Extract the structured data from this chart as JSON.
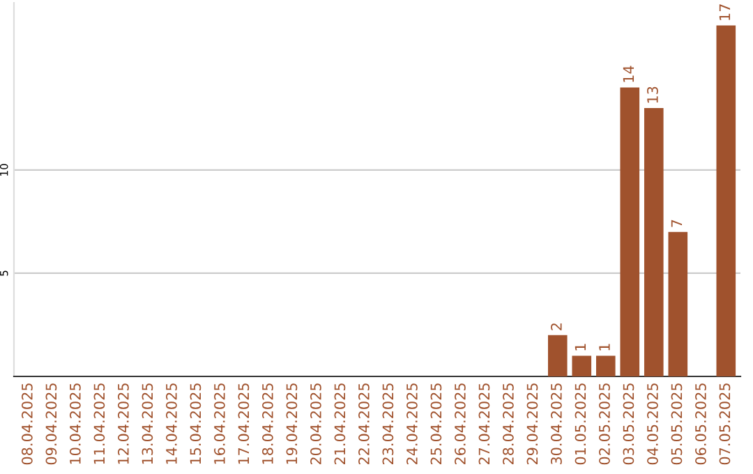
{
  "chart_data": {
    "type": "bar",
    "categories": [
      "08.04.2025",
      "09.04.2025",
      "10.04.2025",
      "11.04.2025",
      "12.04.2025",
      "13.04.2025",
      "14.04.2025",
      "15.04.2025",
      "16.04.2025",
      "17.04.2025",
      "18.04.2025",
      "19.04.2025",
      "20.04.2025",
      "21.04.2025",
      "22.04.2025",
      "23.04.2025",
      "24.04.2025",
      "25.04.2025",
      "26.04.2025",
      "27.04.2025",
      "28.04.2025",
      "29.04.2025",
      "30.04.2025",
      "01.05.2025",
      "02.05.2025",
      "03.05.2025",
      "04.05.2025",
      "05.05.2025",
      "06.05.2025",
      "07.05.2025"
    ],
    "values": [
      0,
      0,
      0,
      0,
      0,
      0,
      0,
      0,
      0,
      0,
      0,
      0,
      0,
      0,
      0,
      0,
      0,
      0,
      0,
      0,
      0,
      0,
      2,
      1,
      1,
      14,
      13,
      7,
      0,
      17
    ],
    "value_labels": [
      null,
      null,
      null,
      null,
      null,
      null,
      null,
      null,
      null,
      null,
      null,
      null,
      null,
      null,
      null,
      null,
      null,
      null,
      null,
      null,
      null,
      null,
      "2",
      "1",
      "1",
      "14",
      "13",
      "7",
      null,
      "17"
    ],
    "color": "#a0522d",
    "ylim": [
      0,
      18.1
    ],
    "yticks": [
      5,
      10
    ],
    "grid": "y"
  }
}
